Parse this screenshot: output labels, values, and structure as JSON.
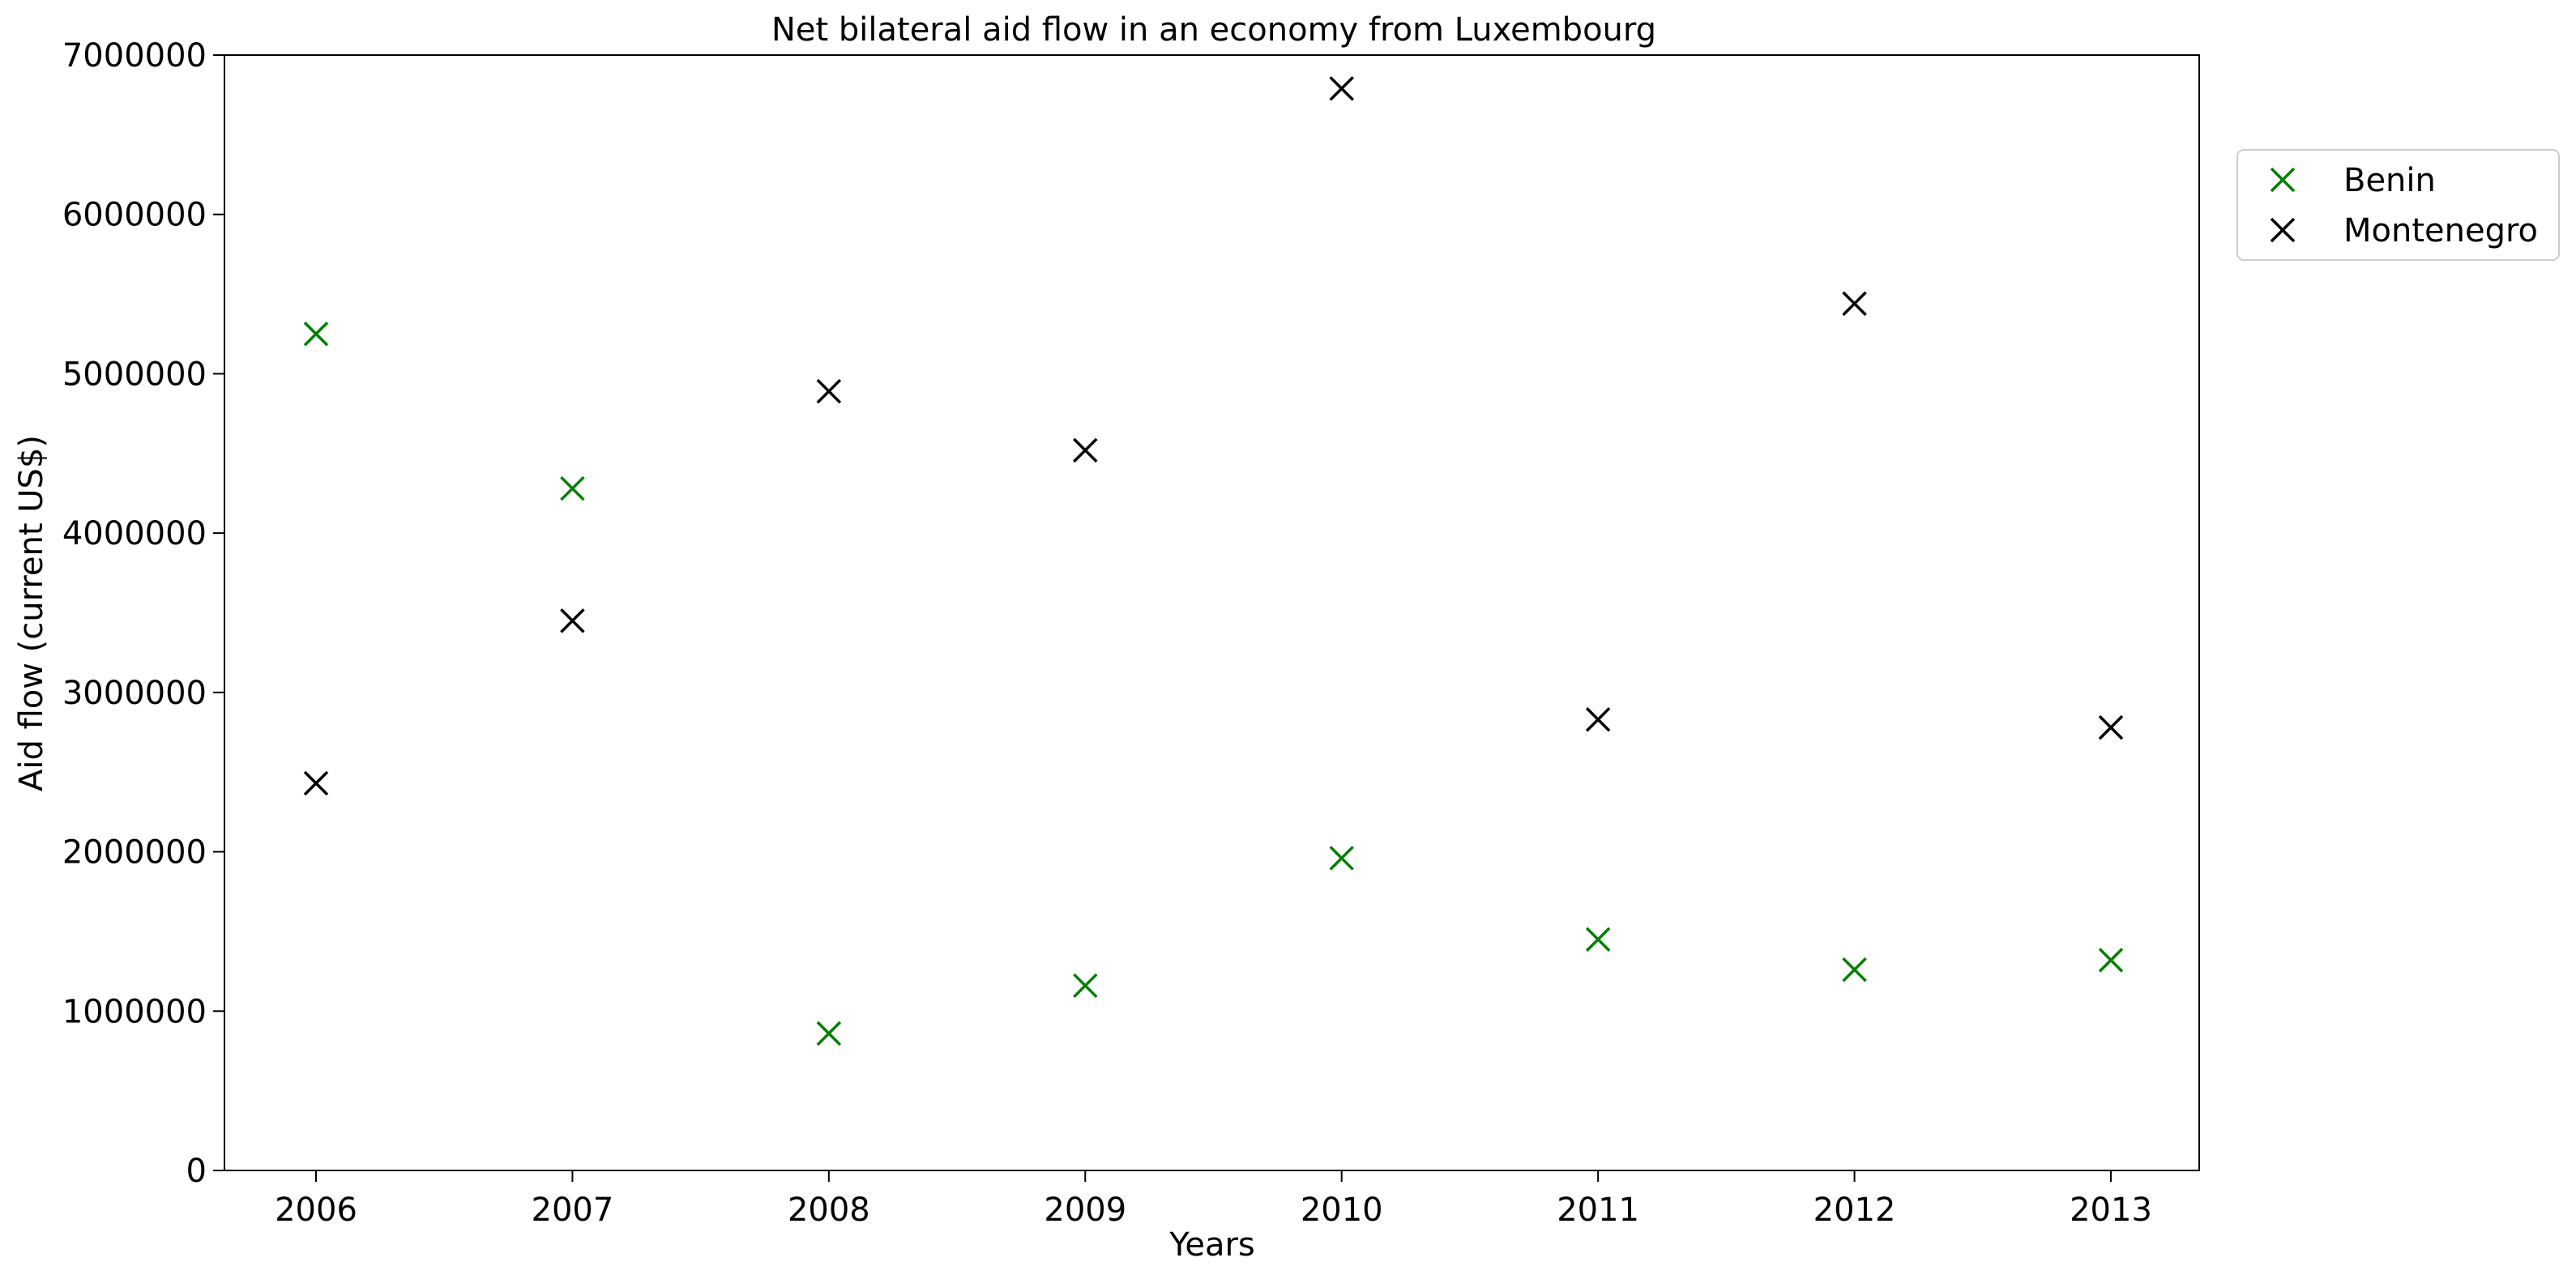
{
  "chart_data": {
    "type": "scatter",
    "title": "Net bilateral aid flow in an economy from Luxembourg",
    "xlabel": "Years",
    "ylabel": "Aid flow (current US$)",
    "x": [
      2006,
      2007,
      2008,
      2009,
      2010,
      2011,
      2012,
      2013
    ],
    "x_tick_labels": [
      "2006",
      "2007",
      "2008",
      "2009",
      "2010",
      "2011",
      "2012",
      "2013"
    ],
    "y_ticks": [
      0,
      1000000,
      2000000,
      3000000,
      4000000,
      5000000,
      6000000,
      7000000
    ],
    "y_tick_labels": [
      "0",
      "1000000",
      "2000000",
      "3000000",
      "4000000",
      "5000000",
      "6000000",
      "7000000"
    ],
    "ylim": [
      0,
      7000000
    ],
    "grid": false,
    "legend_position": "right, outside plot area",
    "series": [
      {
        "name": "Benin",
        "color": "#008000",
        "marker": "x",
        "values": [
          5250000,
          4280000,
          860000,
          1160000,
          1960000,
          1450000,
          1260000,
          1320000
        ]
      },
      {
        "name": "Montenegro",
        "color": "#000000",
        "marker": "x",
        "values": [
          2430000,
          3450000,
          4890000,
          4520000,
          6790000,
          2830000,
          5440000,
          2780000
        ]
      }
    ]
  }
}
